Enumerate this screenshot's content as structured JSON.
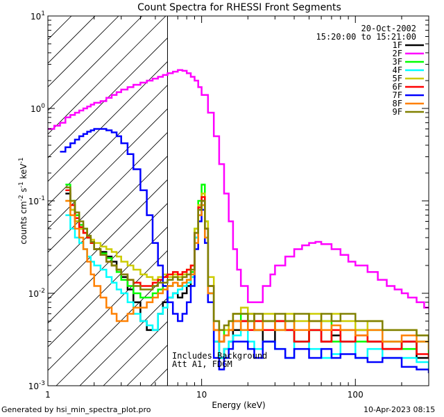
{
  "chart_data": {
    "type": "line",
    "title": "Count Spectra for RHESSI Front Segments",
    "xlabel": "Energy (keV)",
    "ylabel_html": "counts cm⁻² s⁻¹ keV⁻¹",
    "ylabel_parts": [
      "counts cm",
      "-2",
      " s",
      "-1",
      " keV",
      "-1"
    ],
    "xscale": "log",
    "yscale": "log",
    "xlim": [
      1.0,
      300.0
    ],
    "ylim": [
      0.001,
      10.0
    ],
    "x_ticks": [
      {
        "value": 1,
        "label": "1"
      },
      {
        "value": 10,
        "label": "10"
      },
      {
        "value": 100,
        "label": "100"
      }
    ],
    "y_ticks": [
      {
        "value": 0.001,
        "base": "10",
        "exp": "-3"
      },
      {
        "value": 0.01,
        "base": "10",
        "exp": "-2"
      },
      {
        "value": 0.1,
        "base": "10",
        "exp": "-1"
      },
      {
        "value": 1,
        "base": "10",
        "exp": "0"
      },
      {
        "value": 10,
        "base": "10",
        "exp": "1"
      }
    ],
    "date": "20-Oct-2002",
    "time_range": "15:20:00 to 15:21:00",
    "hatched_region": {
      "xmin": 1.0,
      "xmax": 6.0
    },
    "annotation_lines": [
      "Includes Background",
      "Att A1, FDGM"
    ],
    "legend_position": "top-right",
    "series": [
      {
        "name": "1F",
        "color": "#000000",
        "x": [
          1.3,
          1.4,
          1.5,
          1.6,
          1.7,
          1.8,
          1.9,
          2.0,
          2.2,
          2.4,
          2.6,
          2.8,
          3.0,
          3.3,
          3.6,
          4.0,
          4.4,
          4.8,
          5.2,
          5.6,
          6.0,
          6.5,
          7.0,
          7.5,
          8.0,
          8.5,
          9.0,
          9.5,
          10,
          10.5,
          11,
          12,
          13,
          14,
          15,
          16,
          18,
          20,
          22,
          25,
          30,
          35,
          40,
          50,
          60,
          70,
          80,
          100,
          120,
          150,
          200,
          250,
          300
        ],
        "values": [
          0.12,
          0.08,
          0.06,
          0.05,
          0.045,
          0.04,
          0.035,
          0.03,
          0.028,
          0.025,
          0.022,
          0.018,
          0.015,
          0.011,
          0.008,
          0.005,
          0.004,
          0.004,
          0.006,
          0.008,
          0.009,
          0.01,
          0.009,
          0.01,
          0.012,
          0.015,
          0.04,
          0.08,
          0.1,
          0.05,
          0.01,
          0.003,
          0.002,
          0.0025,
          0.003,
          0.004,
          0.005,
          0.006,
          0.004,
          0.003,
          0.005,
          0.004,
          0.003,
          0.004,
          0.003,
          0.0035,
          0.003,
          0.004,
          0.003,
          0.0025,
          0.003,
          0.002,
          0.002
        ]
      },
      {
        "name": "2F",
        "color": "#ff00ff",
        "x": [
          1.0,
          1.1,
          1.2,
          1.3,
          1.4,
          1.5,
          1.6,
          1.7,
          1.8,
          1.9,
          2.0,
          2.2,
          2.4,
          2.6,
          2.8,
          3.0,
          3.3,
          3.6,
          4.0,
          4.4,
          4.8,
          5.2,
          5.6,
          6.0,
          6.5,
          7.0,
          7.5,
          8.0,
          8.5,
          9.0,
          9.5,
          10,
          11,
          12,
          13,
          14,
          15,
          16,
          17,
          18,
          20,
          22,
          25,
          28,
          30,
          35,
          40,
          45,
          50,
          55,
          60,
          70,
          80,
          90,
          100,
          120,
          140,
          160,
          180,
          200,
          220,
          250,
          280,
          300
        ],
        "values": [
          0.6,
          0.65,
          0.7,
          0.8,
          0.85,
          0.9,
          0.95,
          1.0,
          1.05,
          1.1,
          1.15,
          1.2,
          1.3,
          1.4,
          1.5,
          1.6,
          1.7,
          1.8,
          1.9,
          2.0,
          2.1,
          2.2,
          2.3,
          2.4,
          2.5,
          2.6,
          2.55,
          2.4,
          2.2,
          2.0,
          1.7,
          1.4,
          0.9,
          0.5,
          0.25,
          0.12,
          0.06,
          0.03,
          0.018,
          0.012,
          0.008,
          0.008,
          0.012,
          0.016,
          0.02,
          0.025,
          0.03,
          0.033,
          0.035,
          0.036,
          0.034,
          0.03,
          0.026,
          0.022,
          0.02,
          0.017,
          0.014,
          0.012,
          0.011,
          0.01,
          0.009,
          0.008,
          0.007,
          0.007
        ]
      },
      {
        "name": "3F",
        "color": "#00ff00",
        "x": [
          1.3,
          1.4,
          1.5,
          1.6,
          1.7,
          1.8,
          1.9,
          2.0,
          2.2,
          2.4,
          2.6,
          2.8,
          3.0,
          3.3,
          3.6,
          4.0,
          4.4,
          4.8,
          5.2,
          5.6,
          6.0,
          6.5,
          7.0,
          7.5,
          8.0,
          8.5,
          9.0,
          9.5,
          10,
          10.5,
          11,
          12,
          13,
          14,
          15,
          16,
          18,
          20,
          22,
          25,
          30,
          35,
          40,
          50,
          60,
          70,
          80,
          100,
          120,
          150,
          200,
          250,
          300
        ],
        "values": [
          0.15,
          0.1,
          0.07,
          0.055,
          0.05,
          0.04,
          0.035,
          0.03,
          0.027,
          0.024,
          0.02,
          0.017,
          0.014,
          0.012,
          0.01,
          0.009,
          0.009,
          0.01,
          0.011,
          0.012,
          0.012,
          0.013,
          0.012,
          0.013,
          0.014,
          0.017,
          0.05,
          0.1,
          0.15,
          0.06,
          0.012,
          0.004,
          0.003,
          0.004,
          0.004,
          0.005,
          0.006,
          0.005,
          0.004,
          0.005,
          0.004,
          0.005,
          0.003,
          0.004,
          0.005,
          0.003,
          0.004,
          0.003,
          0.004,
          0.003,
          0.0025,
          0.003,
          0.002
        ]
      },
      {
        "name": "4F",
        "color": "#00ffff",
        "x": [
          1.3,
          1.4,
          1.5,
          1.6,
          1.7,
          1.8,
          1.9,
          2.0,
          2.2,
          2.4,
          2.6,
          2.8,
          3.0,
          3.3,
          3.6,
          4.0,
          4.4,
          4.8,
          5.2,
          5.6,
          6.0,
          6.5,
          7.0,
          7.5,
          8.0,
          8.5,
          9.0,
          9.5,
          10,
          10.5,
          11,
          12,
          13,
          14,
          15,
          16,
          18,
          20,
          22,
          25,
          30,
          35,
          40,
          50,
          60,
          70,
          80,
          100,
          120,
          150,
          200,
          250,
          300
        ],
        "values": [
          0.07,
          0.05,
          0.04,
          0.035,
          0.03,
          0.025,
          0.022,
          0.02,
          0.018,
          0.015,
          0.013,
          0.011,
          0.01,
          0.008,
          0.006,
          0.005,
          0.0045,
          0.004,
          0.006,
          0.007,
          0.009,
          0.01,
          0.011,
          0.012,
          0.013,
          0.015,
          0.04,
          0.07,
          0.09,
          0.04,
          0.01,
          0.003,
          0.002,
          0.0025,
          0.003,
          0.0035,
          0.004,
          0.003,
          0.0025,
          0.003,
          0.0025,
          0.002,
          0.003,
          0.0025,
          0.002,
          0.0022,
          0.003,
          0.002,
          0.0025,
          0.002,
          0.002,
          0.0018,
          0.0015
        ]
      },
      {
        "name": "5F",
        "color": "#cccc00",
        "x": [
          1.3,
          1.4,
          1.5,
          1.6,
          1.7,
          1.8,
          1.9,
          2.0,
          2.2,
          2.4,
          2.6,
          2.8,
          3.0,
          3.3,
          3.6,
          4.0,
          4.4,
          4.8,
          5.2,
          5.6,
          6.0,
          6.5,
          7.0,
          7.5,
          8.0,
          8.5,
          9.0,
          9.5,
          10,
          10.5,
          11,
          12,
          13,
          14,
          15,
          16,
          18,
          20,
          22,
          25,
          30,
          35,
          40,
          50,
          60,
          70,
          80,
          100,
          120,
          150,
          200,
          250,
          300
        ],
        "values": [
          0.1,
          0.08,
          0.06,
          0.05,
          0.045,
          0.04,
          0.038,
          0.035,
          0.032,
          0.03,
          0.028,
          0.025,
          0.022,
          0.02,
          0.018,
          0.016,
          0.015,
          0.014,
          0.015,
          0.016,
          0.015,
          0.016,
          0.015,
          0.016,
          0.018,
          0.02,
          0.05,
          0.09,
          0.12,
          0.06,
          0.015,
          0.005,
          0.004,
          0.004,
          0.005,
          0.006,
          0.007,
          0.006,
          0.005,
          0.006,
          0.005,
          0.006,
          0.005,
          0.006,
          0.005,
          0.006,
          0.005,
          0.004,
          0.005,
          0.004,
          0.004,
          0.0035,
          0.003
        ]
      },
      {
        "name": "6F",
        "color": "#ff0000",
        "x": [
          1.3,
          1.4,
          1.5,
          1.6,
          1.7,
          1.8,
          1.9,
          2.0,
          2.2,
          2.4,
          2.6,
          2.8,
          3.0,
          3.3,
          3.6,
          4.0,
          4.4,
          4.8,
          5.2,
          5.6,
          6.0,
          6.5,
          7.0,
          7.5,
          8.0,
          8.5,
          9.0,
          9.5,
          10,
          10.5,
          11,
          12,
          13,
          14,
          15,
          16,
          18,
          20,
          22,
          25,
          30,
          35,
          40,
          50,
          60,
          70,
          80,
          100,
          120,
          150,
          200,
          250,
          300
        ],
        "values": [
          0.13,
          0.09,
          0.065,
          0.052,
          0.045,
          0.04,
          0.035,
          0.03,
          0.026,
          0.022,
          0.02,
          0.018,
          0.016,
          0.014,
          0.013,
          0.012,
          0.012,
          0.013,
          0.014,
          0.015,
          0.016,
          0.017,
          0.016,
          0.017,
          0.018,
          0.02,
          0.045,
          0.085,
          0.11,
          0.05,
          0.012,
          0.004,
          0.003,
          0.0035,
          0.004,
          0.005,
          0.005,
          0.004,
          0.005,
          0.004,
          0.005,
          0.004,
          0.003,
          0.004,
          0.003,
          0.004,
          0.003,
          0.0035,
          0.003,
          0.0025,
          0.003,
          0.0022,
          0.002
        ]
      },
      {
        "name": "7F",
        "color": "#0000ff",
        "x": [
          1.2,
          1.3,
          1.4,
          1.5,
          1.6,
          1.7,
          1.8,
          1.9,
          2.0,
          2.2,
          2.4,
          2.6,
          2.8,
          3.0,
          3.3,
          3.6,
          4.0,
          4.4,
          4.8,
          5.2,
          5.6,
          6.0,
          6.5,
          7.0,
          7.5,
          8.0,
          8.5,
          9.0,
          9.5,
          10,
          10.5,
          11,
          12,
          13,
          14,
          15,
          16,
          18,
          20,
          22,
          25,
          30,
          35,
          40,
          50,
          60,
          70,
          80,
          100,
          120,
          150,
          200,
          250,
          300
        ],
        "values": [
          0.34,
          0.38,
          0.42,
          0.46,
          0.5,
          0.53,
          0.56,
          0.58,
          0.6,
          0.6,
          0.58,
          0.55,
          0.5,
          0.42,
          0.32,
          0.22,
          0.13,
          0.07,
          0.035,
          0.02,
          0.012,
          0.008,
          0.006,
          0.005,
          0.006,
          0.008,
          0.012,
          0.03,
          0.06,
          0.08,
          0.035,
          0.008,
          0.002,
          0.0015,
          0.002,
          0.0025,
          0.003,
          0.003,
          0.0025,
          0.002,
          0.003,
          0.0025,
          0.002,
          0.0025,
          0.002,
          0.0025,
          0.002,
          0.0022,
          0.002,
          0.0018,
          0.002,
          0.0016,
          0.0015,
          0.0014
        ]
      },
      {
        "name": "8F",
        "color": "#ff8000",
        "x": [
          1.3,
          1.4,
          1.5,
          1.6,
          1.7,
          1.8,
          1.9,
          2.0,
          2.2,
          2.4,
          2.6,
          2.8,
          3.0,
          3.3,
          3.6,
          4.0,
          4.4,
          4.8,
          5.2,
          5.6,
          6.0,
          6.5,
          7.0,
          7.5,
          8.0,
          8.5,
          9.0,
          9.5,
          10,
          10.5,
          11,
          12,
          13,
          14,
          15,
          16,
          18,
          20,
          22,
          25,
          30,
          35,
          40,
          50,
          60,
          70,
          80,
          100,
          120,
          150,
          200,
          250,
          300
        ],
        "values": [
          0.1,
          0.07,
          0.05,
          0.04,
          0.03,
          0.022,
          0.016,
          0.012,
          0.009,
          0.007,
          0.006,
          0.005,
          0.005,
          0.006,
          0.007,
          0.007,
          0.008,
          0.009,
          0.01,
          0.011,
          0.012,
          0.013,
          0.012,
          0.013,
          0.014,
          0.016,
          0.035,
          0.07,
          0.09,
          0.04,
          0.01,
          0.004,
          0.003,
          0.0035,
          0.004,
          0.005,
          0.004,
          0.005,
          0.004,
          0.005,
          0.004,
          0.005,
          0.004,
          0.005,
          0.004,
          0.0045,
          0.004,
          0.0035,
          0.004,
          0.003,
          0.0035,
          0.003,
          0.0025
        ]
      },
      {
        "name": "9F",
        "color": "#808000",
        "x": [
          1.3,
          1.4,
          1.5,
          1.6,
          1.7,
          1.8,
          1.9,
          2.0,
          2.2,
          2.4,
          2.6,
          2.8,
          3.0,
          3.3,
          3.6,
          4.0,
          4.4,
          4.8,
          5.2,
          5.6,
          6.0,
          6.5,
          7.0,
          7.5,
          8.0,
          8.5,
          9.0,
          9.5,
          10,
          10.5,
          11,
          12,
          13,
          14,
          15,
          16,
          18,
          20,
          22,
          25,
          30,
          35,
          40,
          50,
          60,
          70,
          80,
          100,
          120,
          150,
          200,
          250,
          300
        ],
        "values": [
          0.14,
          0.1,
          0.075,
          0.06,
          0.05,
          0.042,
          0.036,
          0.03,
          0.026,
          0.022,
          0.02,
          0.018,
          0.016,
          0.014,
          0.012,
          0.011,
          0.011,
          0.012,
          0.013,
          0.013,
          0.014,
          0.015,
          0.014,
          0.015,
          0.016,
          0.018,
          0.045,
          0.08,
          0.1,
          0.05,
          0.012,
          0.005,
          0.004,
          0.0045,
          0.005,
          0.006,
          0.006,
          0.005,
          0.006,
          0.005,
          0.006,
          0.005,
          0.006,
          0.005,
          0.006,
          0.005,
          0.006,
          0.005,
          0.005,
          0.004,
          0.004,
          0.0035,
          0.003
        ]
      }
    ]
  },
  "footer": {
    "left": "Generated by hsi_min_spectra_plot.pro",
    "right": "10-Apr-2023 08:15"
  }
}
